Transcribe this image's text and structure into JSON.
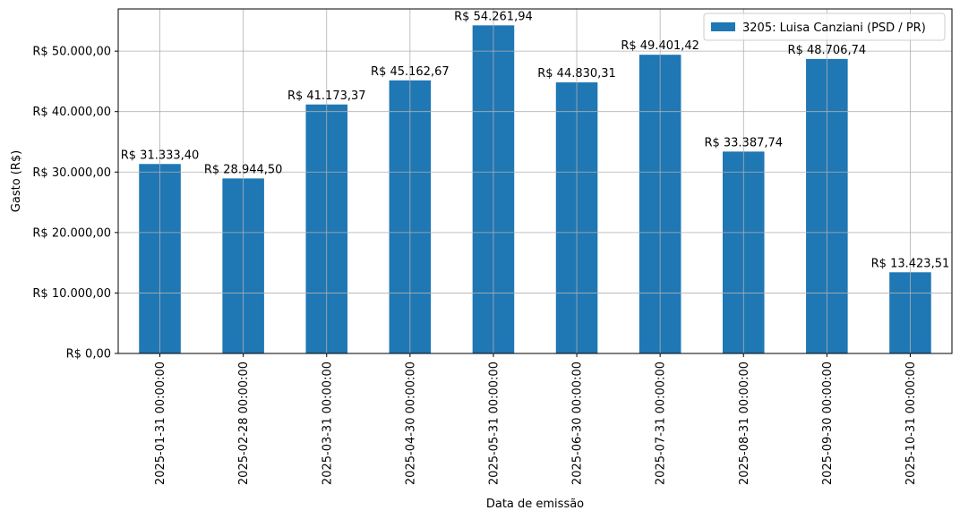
{
  "chart_data": {
    "type": "bar",
    "categories": [
      "2025-01-31 00:00:00",
      "2025-02-28 00:00:00",
      "2025-03-31 00:00:00",
      "2025-04-30 00:00:00",
      "2025-05-31 00:00:00",
      "2025-06-30 00:00:00",
      "2025-07-31 00:00:00",
      "2025-08-31 00:00:00",
      "2025-09-30 00:00:00",
      "2025-10-31 00:00:00"
    ],
    "series": [
      {
        "name": "3205: Luisa Canziani (PSD / PR)",
        "color": "#1f77b4",
        "values": [
          31333.4,
          28944.5,
          41173.37,
          45162.67,
          54261.94,
          44830.31,
          49401.42,
          33387.74,
          48706.74,
          13423.51
        ],
        "data_labels": [
          "R$ 31.333,40",
          "R$ 28.944,50",
          "R$ 41.173,37",
          "R$ 45.162,67",
          "R$ 54.261,94",
          "R$ 44.830,31",
          "R$ 49.401,42",
          "R$ 33.387,74",
          "R$ 48.706,74",
          "R$ 13.423,51"
        ]
      }
    ],
    "xlabel": "Data de emissão",
    "ylabel": "Gasto (R$)",
    "ylim": [
      0,
      56974
    ],
    "yticks": [
      0,
      10000,
      20000,
      30000,
      40000,
      50000
    ],
    "ytick_labels": [
      "R$ 0,00",
      "R$ 10.000,00",
      "R$ 20.000,00",
      "R$ 30.000,00",
      "R$ 40.000,00",
      "R$ 50.000,00"
    ],
    "grid": true,
    "legend_position": "top-right",
    "grid_color": "#b0b0b0"
  }
}
